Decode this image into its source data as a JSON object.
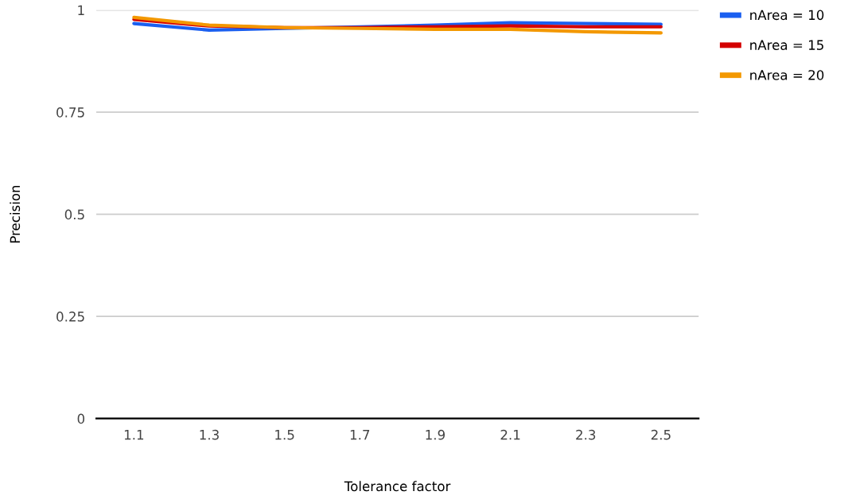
{
  "chart_data": {
    "type": "line",
    "xlabel": "Tolerance factor",
    "ylabel": "Precision",
    "categories": [
      "1.1",
      "1.3",
      "1.5",
      "1.7",
      "1.9",
      "2.1",
      "2.3",
      "2.5"
    ],
    "series": [
      {
        "name": "nArea = 10",
        "color": "#1a5ff0",
        "values": [
          0.967,
          0.951,
          0.955,
          0.959,
          0.963,
          0.969,
          0.967,
          0.965
        ]
      },
      {
        "name": "nArea = 15",
        "color": "#d40000",
        "values": [
          0.977,
          0.961,
          0.957,
          0.957,
          0.959,
          0.961,
          0.959,
          0.959
        ]
      },
      {
        "name": "nArea = 20",
        "color": "#f39800",
        "values": [
          0.982,
          0.963,
          0.957,
          0.955,
          0.953,
          0.953,
          0.947,
          0.944
        ]
      }
    ],
    "ylim": [
      0,
      1
    ],
    "yticks": [
      0,
      0.25,
      0.5,
      0.75,
      1
    ],
    "grid": "y",
    "legend": "top right",
    "marker": "none",
    "line_style": "solid"
  }
}
